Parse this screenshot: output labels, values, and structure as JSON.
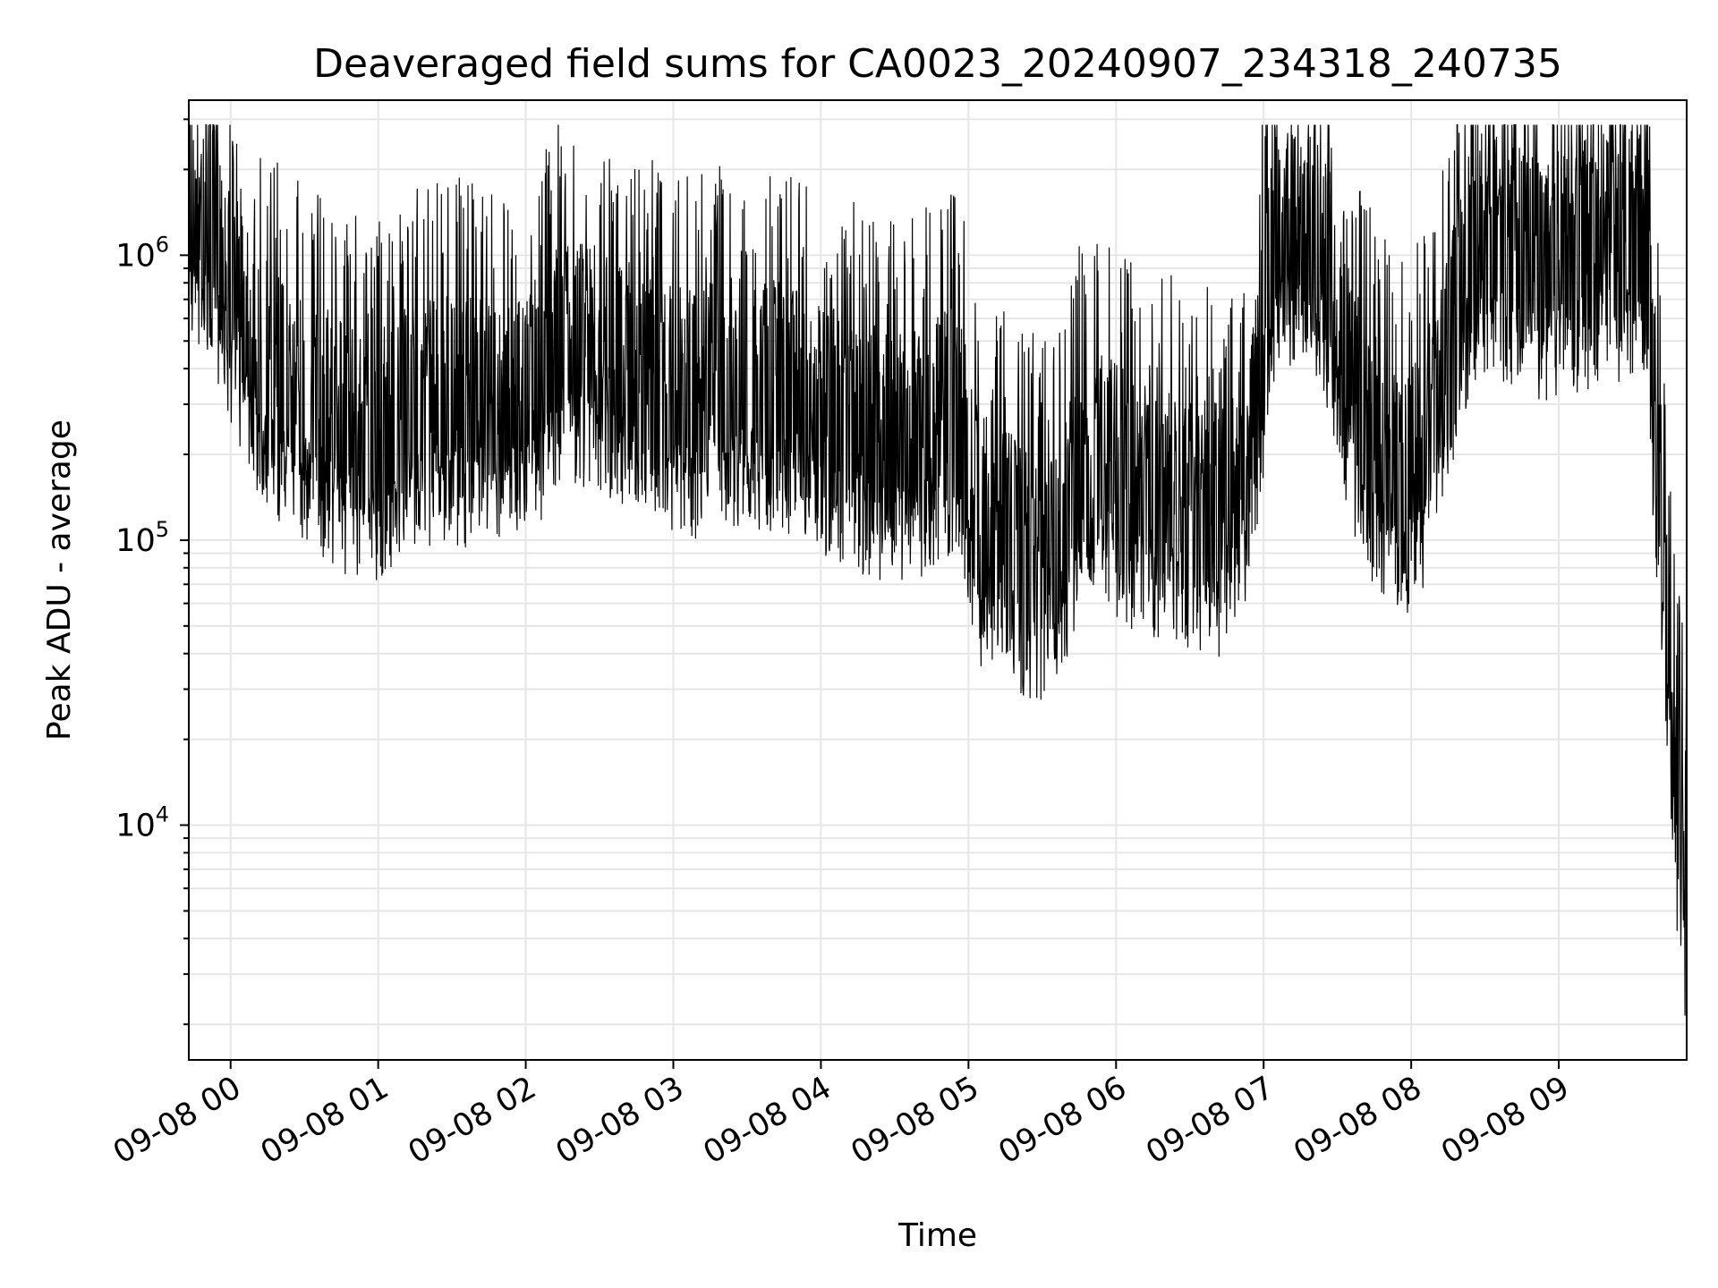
{
  "chart_data": {
    "type": "line",
    "title": "Deaveraged field sums for CA0023_20240907_234318_240735",
    "xlabel": "Time",
    "ylabel": "Peak ADU - average",
    "yscale": "log",
    "ylim": [
      1500,
      3500000
    ],
    "xlim": [
      "09-07 23:43",
      "09-08 09:52"
    ],
    "grid": true,
    "line_color": "#000000",
    "grid_color": "#e6e6e6",
    "x_ticks": [
      "09-08 00",
      "09-08 01",
      "09-08 02",
      "09-08 03",
      "09-08 04",
      "09-08 05",
      "09-08 06",
      "09-08 07",
      "09-08 08",
      "09-08 09"
    ],
    "y_ticks": [
      {
        "value": 10000,
        "base": "10",
        "exp": "4"
      },
      {
        "value": 100000,
        "base": "10",
        "exp": "5"
      },
      {
        "value": 1000000,
        "base": "10",
        "exp": "6"
      }
    ],
    "series": [
      {
        "x": [
          "09-07 23:43",
          "09-07 23:50",
          "09-07 23:57",
          "09-08 00:05",
          "09-08 00:15",
          "09-08 00:25",
          "09-08 00:35",
          "09-08 00:45",
          "09-08 00:55",
          "09-08 01:05",
          "09-08 01:15",
          "09-08 01:25",
          "09-08 01:35",
          "09-08 01:45",
          "09-08 01:55",
          "09-08 02:05",
          "09-08 02:15",
          "09-08 02:25",
          "09-08 02:35",
          "09-08 02:45",
          "09-08 02:55",
          "09-08 03:05",
          "09-08 03:15",
          "09-08 03:25",
          "09-08 03:35",
          "09-08 03:45",
          "09-08 03:55",
          "09-08 04:05",
          "09-08 04:15",
          "09-08 04:25",
          "09-08 04:35",
          "09-08 04:45",
          "09-08 04:55",
          "09-08 05:05",
          "09-08 05:15",
          "09-08 05:25",
          "09-08 05:35",
          "09-08 05:45",
          "09-08 05:55",
          "09-08 06:05",
          "09-08 06:15",
          "09-08 06:25",
          "09-08 06:35",
          "09-08 06:45",
          "09-08 06:55",
          "09-08 07:05",
          "09-08 07:15",
          "09-08 07:25",
          "09-08 07:35",
          "09-08 07:45",
          "09-08 07:55",
          "09-08 08:05",
          "09-08 08:15",
          "09-08 08:25",
          "09-08 08:35",
          "09-08 08:45",
          "09-08 08:55",
          "09-08 09:05",
          "09-08 09:15",
          "09-08 09:25",
          "09-08 09:35",
          "09-08 09:40",
          "09-08 09:44",
          "09-08 09:47",
          "09-08 09:50",
          "09-08 09:52"
        ],
        "y": [
          1200000,
          900000,
          700000,
          400000,
          280000,
          230000,
          200000,
          170000,
          150000,
          170000,
          200000,
          220000,
          210000,
          200000,
          190000,
          250000,
          350000,
          330000,
          300000,
          260000,
          230000,
          220000,
          230000,
          250000,
          240000,
          230000,
          210000,
          190000,
          170000,
          160000,
          150000,
          170000,
          200000,
          80000,
          70000,
          60000,
          55000,
          120000,
          130000,
          110000,
          100000,
          95000,
          90000,
          85000,
          150000,
          900000,
          800000,
          700000,
          250000,
          150000,
          120000,
          130000,
          350000,
          800000,
          750000,
          700000,
          650000,
          700000,
          750000,
          800000,
          850000,
          150000,
          40000,
          12000,
          6000,
          4000
        ]
      }
    ]
  }
}
